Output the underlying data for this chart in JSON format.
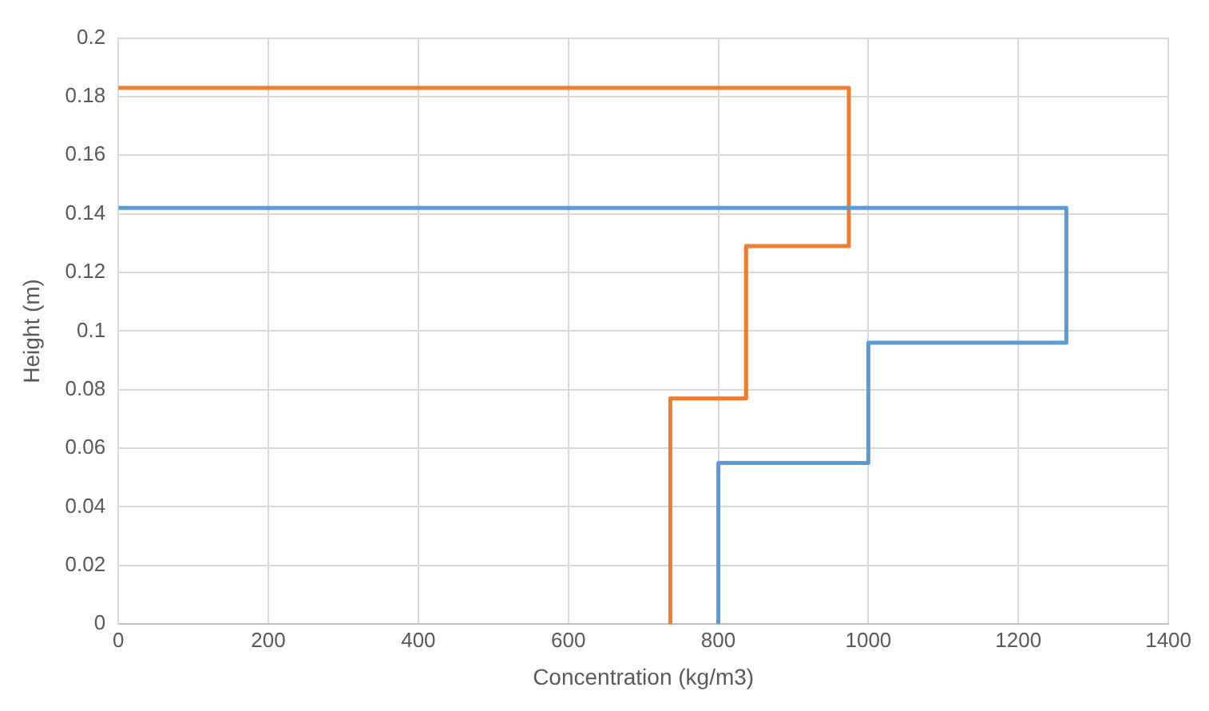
{
  "chart_data": {
    "type": "line",
    "xlabel": "Concentration (kg/m3)",
    "ylabel": "Height (m)",
    "series": [
      {
        "color": "#5b9bd5",
        "x": [
          800,
          800,
          1000,
          1000,
          1264,
          1264,
          0
        ],
        "values": [
          0,
          0.055,
          0.055,
          0.096,
          0.096,
          0.142,
          0.142
        ]
      },
      {
        "color": "#ed7d31",
        "x": [
          736,
          736,
          837,
          837,
          974,
          974,
          0
        ],
        "values": [
          0,
          0.077,
          0.077,
          0.129,
          0.129,
          0.183,
          0.183
        ]
      }
    ],
    "xlim": [
      0,
      1400
    ],
    "xticks": [
      0,
      200,
      400,
      600,
      800,
      1000,
      1200,
      1400
    ],
    "ylim": [
      0,
      0.2
    ],
    "yticks": [
      0,
      0.02,
      0.04,
      0.06,
      0.08,
      0.1,
      0.12,
      0.14,
      0.16,
      0.18,
      0.2
    ],
    "grid": true,
    "legend": false,
    "marker": "none",
    "line_style": "solid"
  }
}
